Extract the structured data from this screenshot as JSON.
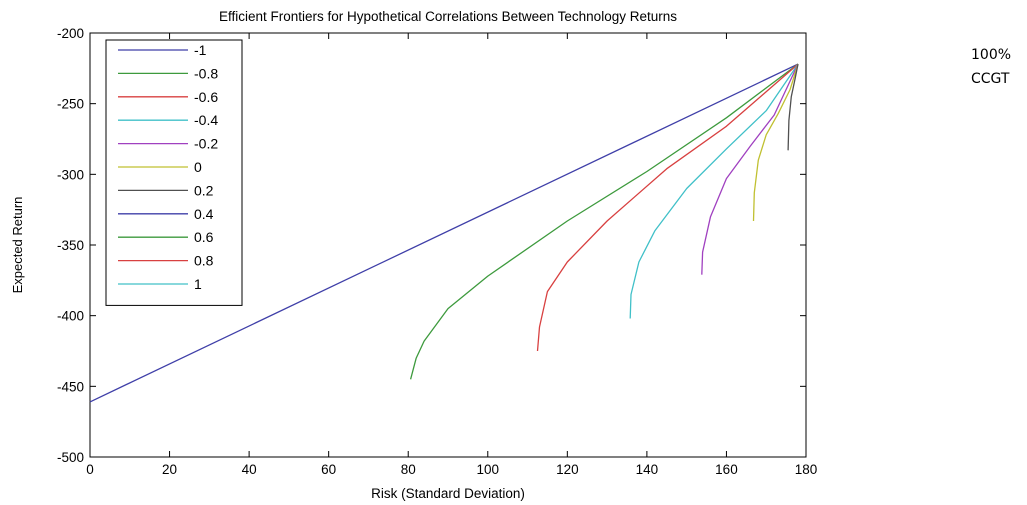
{
  "chart_data": {
    "type": "line",
    "title": "Efficient Frontiers for Hypothetical Correlations Between Technology Returns",
    "xlabel": "Risk (Standard Deviation)",
    "ylabel": "Expected Return",
    "xlim": [
      0,
      180
    ],
    "ylim": [
      -500,
      -200
    ],
    "xticks": [
      0,
      20,
      40,
      60,
      80,
      100,
      120,
      140,
      160,
      180
    ],
    "yticks": [
      -200,
      -250,
      -300,
      -350,
      -400,
      -450,
      -500
    ],
    "grid": false,
    "legend_position": "top-left",
    "legend_entries": [
      "-1",
      "-0.8",
      "-0.6",
      "-0.4",
      "-0.2",
      "0",
      "0.2",
      "0.4",
      "0.6",
      "0.8",
      "1"
    ],
    "series": [
      {
        "name": "-1",
        "color": "#3f3fa8",
        "x": [
          0,
          178
        ],
        "y": [
          -461,
          -222
        ]
      },
      {
        "name": "-0.8",
        "color": "#3d9a3d",
        "x": [
          80.6,
          82,
          84,
          90,
          100,
          120,
          140,
          160,
          178
        ],
        "y": [
          -445,
          -430,
          -418,
          -395,
          -372,
          -333,
          -298,
          -260,
          -222
        ]
      },
      {
        "name": "-0.6",
        "color": "#d84040",
        "x": [
          112.5,
          113,
          115,
          120,
          130,
          145,
          160,
          178
        ],
        "y": [
          -425,
          -408,
          -383,
          -362,
          -333,
          -296,
          -266,
          -222
        ]
      },
      {
        "name": "-0.4",
        "color": "#40c0c8",
        "x": [
          135.8,
          136,
          138,
          142,
          150,
          160,
          170,
          178
        ],
        "y": [
          -402,
          -385,
          -362,
          -340,
          -310,
          -282,
          -255,
          -222
        ]
      },
      {
        "name": "-0.2",
        "color": "#a040c0",
        "x": [
          153.8,
          154,
          156,
          160,
          166,
          172,
          178
        ],
        "y": [
          -371,
          -355,
          -330,
          -303,
          -280,
          -258,
          -222
        ]
      },
      {
        "name": "0",
        "color": "#c0c030",
        "x": [
          166.8,
          167,
          168,
          170,
          173,
          176,
          178
        ],
        "y": [
          -333,
          -313,
          -290,
          -272,
          -257,
          -240,
          -222
        ]
      },
      {
        "name": "0.2",
        "color": "#505050",
        "x": [
          175.5,
          175.7,
          176.3,
          177.2,
          178
        ],
        "y": [
          -283,
          -262,
          -245,
          -233,
          -222
        ]
      }
    ]
  },
  "annotation": {
    "line1": "100%",
    "line2": "CCGT"
  }
}
